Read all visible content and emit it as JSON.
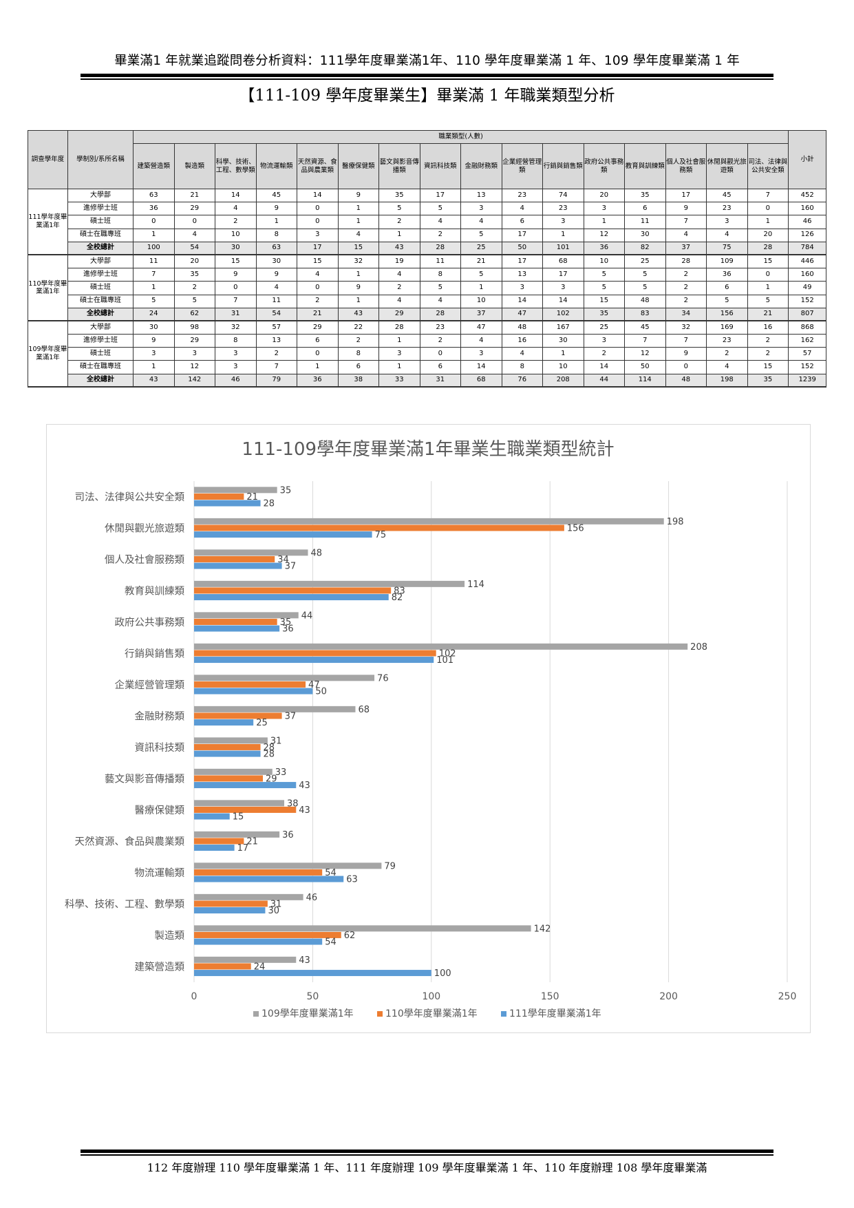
{
  "header": {
    "running_title": "畢業滿1 年就業追蹤問卷分析資料：111學年度畢業滿1年、110 學年度畢業滿 1 年、109 學年度畢業滿 1 年",
    "section_title": "【111-109 學年度畢業生】畢業滿 1 年職業類型分析"
  },
  "table": {
    "col_year": "調查學年度",
    "col_program": "學制別/系所名稱",
    "group_header": "職業類型(人數)",
    "col_subtotal": "小計",
    "categories": [
      "建築營造類",
      "製造類",
      "科學、技術、工程、數學類",
      "物流運輸類",
      "天然資源、食品與農業類",
      "醫療保健類",
      "藝文與影音傳播類",
      "資訊科技類",
      "金融財務類",
      "企業經營管理類",
      "行銷與銷售類",
      "政府公共事務類",
      "教育與訓練類",
      "個人及社會服務類",
      "休閒與觀光旅遊類",
      "司法、法律與公共安全類"
    ],
    "groups": [
      {
        "year": "111學年度畢業滿1年",
        "rows": [
          {
            "program": "大學部",
            "values": [
              "63",
              "21",
              "14",
              "45",
              "14",
              "9",
              "35",
              "17",
              "13",
              "23",
              "74",
              "20",
              "35",
              "17",
              "45",
              "7"
            ],
            "subtotal": "452"
          },
          {
            "program": "進修學士班",
            "values": [
              "36",
              "29",
              "4",
              "9",
              "0",
              "1",
              "5",
              "5",
              "3",
              "4",
              "23",
              "3",
              "6",
              "9",
              "23",
              "0"
            ],
            "subtotal": "160"
          },
          {
            "program": "碩士班",
            "values": [
              "0",
              "0",
              "2",
              "1",
              "0",
              "1",
              "2",
              "4",
              "4",
              "6",
              "3",
              "1",
              "11",
              "7",
              "3",
              "1"
            ],
            "subtotal": "46"
          },
          {
            "program": "碩士在職專班",
            "values": [
              "1",
              "4",
              "10",
              "8",
              "3",
              "4",
              "1",
              "2",
              "5",
              "17",
              "1",
              "12",
              "30",
              "4",
              "4",
              "20"
            ],
            "subtotal": "126"
          },
          {
            "program": "全校總計",
            "values": [
              "100",
              "54",
              "30",
              "63",
              "17",
              "15",
              "43",
              "28",
              "25",
              "50",
              "101",
              "36",
              "82",
              "37",
              "75",
              "28"
            ],
            "subtotal": "784",
            "total": true
          }
        ]
      },
      {
        "year": "110學年度畢業滿1年",
        "rows": [
          {
            "program": "大學部",
            "values": [
              "11",
              "20",
              "15",
              "30",
              "15",
              "32",
              "19",
              "11",
              "21",
              "17",
              "68",
              "10",
              "25",
              "28",
              "109",
              "15"
            ],
            "subtotal": "446"
          },
          {
            "program": "進修學士班",
            "values": [
              "7",
              "35",
              "9",
              "9",
              "4",
              "1",
              "4",
              "8",
              "5",
              "13",
              "17",
              "5",
              "5",
              "2",
              "36",
              "0"
            ],
            "subtotal": "160"
          },
          {
            "program": "碩士班",
            "values": [
              "1",
              "2",
              "0",
              "4",
              "0",
              "9",
              "2",
              "5",
              "1",
              "3",
              "3",
              "5",
              "5",
              "2",
              "6",
              "1"
            ],
            "subtotal": "49"
          },
          {
            "program": "碩士在職專班",
            "values": [
              "5",
              "5",
              "7",
              "11",
              "2",
              "1",
              "4",
              "4",
              "10",
              "14",
              "14",
              "15",
              "48",
              "2",
              "5",
              "5"
            ],
            "subtotal": "152"
          },
          {
            "program": "全校總計",
            "values": [
              "24",
              "62",
              "31",
              "54",
              "21",
              "43",
              "29",
              "28",
              "37",
              "47",
              "102",
              "35",
              "83",
              "34",
              "156",
              "21"
            ],
            "subtotal": "807",
            "total": true
          }
        ]
      },
      {
        "year": "109學年度畢業滿1年",
        "rows": [
          {
            "program": "大學部",
            "values": [
              "30",
              "98",
              "32",
              "57",
              "29",
              "22",
              "28",
              "23",
              "47",
              "48",
              "167",
              "25",
              "45",
              "32",
              "169",
              "16"
            ],
            "subtotal": "868"
          },
          {
            "program": "進修學士班",
            "values": [
              "9",
              "29",
              "8",
              "13",
              "6",
              "2",
              "1",
              "2",
              "4",
              "16",
              "30",
              "3",
              "7",
              "7",
              "23",
              "2"
            ],
            "subtotal": "162"
          },
          {
            "program": "碩士班",
            "values": [
              "3",
              "3",
              "3",
              "2",
              "0",
              "8",
              "3",
              "0",
              "3",
              "4",
              "1",
              "2",
              "12",
              "9",
              "2",
              "2"
            ],
            "subtotal": "57"
          },
          {
            "program": "碩士在職專班",
            "values": [
              "1",
              "12",
              "3",
              "7",
              "1",
              "6",
              "1",
              "6",
              "14",
              "8",
              "10",
              "14",
              "50",
              "0",
              "4",
              "15"
            ],
            "subtotal": "152"
          },
          {
            "program": "全校總計",
            "values": [
              "43",
              "142",
              "46",
              "79",
              "36",
              "38",
              "33",
              "31",
              "68",
              "76",
              "208",
              "44",
              "114",
              "48",
              "198",
              "35"
            ],
            "subtotal": "1239",
            "total": true
          }
        ]
      }
    ]
  },
  "chart_data": {
    "type": "bar",
    "orientation": "horizontal",
    "title": "111-109學年度畢業滿1年畢業生職業類型統計",
    "categories": [
      "司法、法律與公共安全類",
      "休閒與觀光旅遊類",
      "個人及社會服務類",
      "教育與訓練類",
      "政府公共事務類",
      "行銷與銷售類",
      "企業經營管理類",
      "金融財務類",
      "資訊科技類",
      "藝文與影音傳播類",
      "醫療保健類",
      "天然資源、食品與農業類",
      "物流運輸類",
      "科學、技術、工程、數學類",
      "製造類",
      "建築營造類"
    ],
    "series": [
      {
        "name": "109學年度畢業滿1年",
        "color": "#a5a5a5",
        "values": [
          35,
          198,
          48,
          114,
          44,
          208,
          76,
          68,
          31,
          33,
          38,
          36,
          79,
          46,
          142,
          43
        ]
      },
      {
        "name": "110學年度畢業滿1年",
        "color": "#ed7d31",
        "values": [
          21,
          156,
          34,
          83,
          35,
          102,
          47,
          37,
          28,
          29,
          43,
          21,
          54,
          31,
          62,
          24
        ]
      },
      {
        "name": "111學年度畢業滿1年",
        "color": "#5b9bd5",
        "values": [
          28,
          75,
          37,
          82,
          36,
          101,
          50,
          25,
          28,
          43,
          15,
          17,
          63,
          30,
          54,
          100
        ]
      }
    ],
    "xlim": [
      0,
      250
    ],
    "xticks": [
      0,
      50,
      100,
      150,
      200,
      250
    ],
    "grid": true,
    "legend_position": "bottom"
  },
  "footer": {
    "text": "112 年度辦理 110 學年度畢業滿 1 年、111 年度辦理 109 學年度畢業滿 1 年、110 年度辦理 108 學年度畢業滿"
  }
}
